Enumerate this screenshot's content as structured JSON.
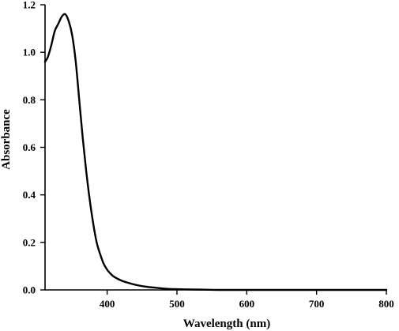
{
  "chart_data": {
    "type": "line",
    "title": "",
    "xlabel": "Wavelength (nm)",
    "ylabel": "Absorbance",
    "xlim": [
      311,
      800
    ],
    "ylim": [
      0,
      1.2
    ],
    "grid": false,
    "x_ticks": [
      400,
      500,
      600,
      700,
      800
    ],
    "y_ticks": [
      0.0,
      0.2,
      0.4,
      0.6,
      0.8,
      1.0,
      1.2
    ],
    "y_tick_labels": [
      "0.0",
      "0.2",
      "0.4",
      "0.6",
      "0.8",
      "1.0",
      "1.2"
    ],
    "x_tick_labels": [
      "400",
      "500",
      "600",
      "700",
      "800"
    ],
    "series": [
      {
        "x": [
          311,
          315,
          320,
          325,
          330,
          335,
          340,
          345,
          350,
          355,
          360,
          365,
          370,
          375,
          380,
          385,
          390,
          395,
          400,
          405,
          410,
          420,
          430,
          440,
          450,
          460,
          470,
          480,
          490,
          500,
          520,
          540,
          560,
          600,
          650,
          700,
          750,
          800
        ],
        "values": [
          0.96,
          0.98,
          1.03,
          1.09,
          1.12,
          1.15,
          1.16,
          1.13,
          1.07,
          0.96,
          0.8,
          0.64,
          0.5,
          0.38,
          0.28,
          0.2,
          0.15,
          0.11,
          0.085,
          0.068,
          0.055,
          0.04,
          0.03,
          0.022,
          0.016,
          0.012,
          0.009,
          0.006,
          0.004,
          0.003,
          0.002,
          0.001,
          0.0,
          0.0,
          0.0,
          0.0,
          0.0,
          0.0
        ]
      }
    ]
  }
}
